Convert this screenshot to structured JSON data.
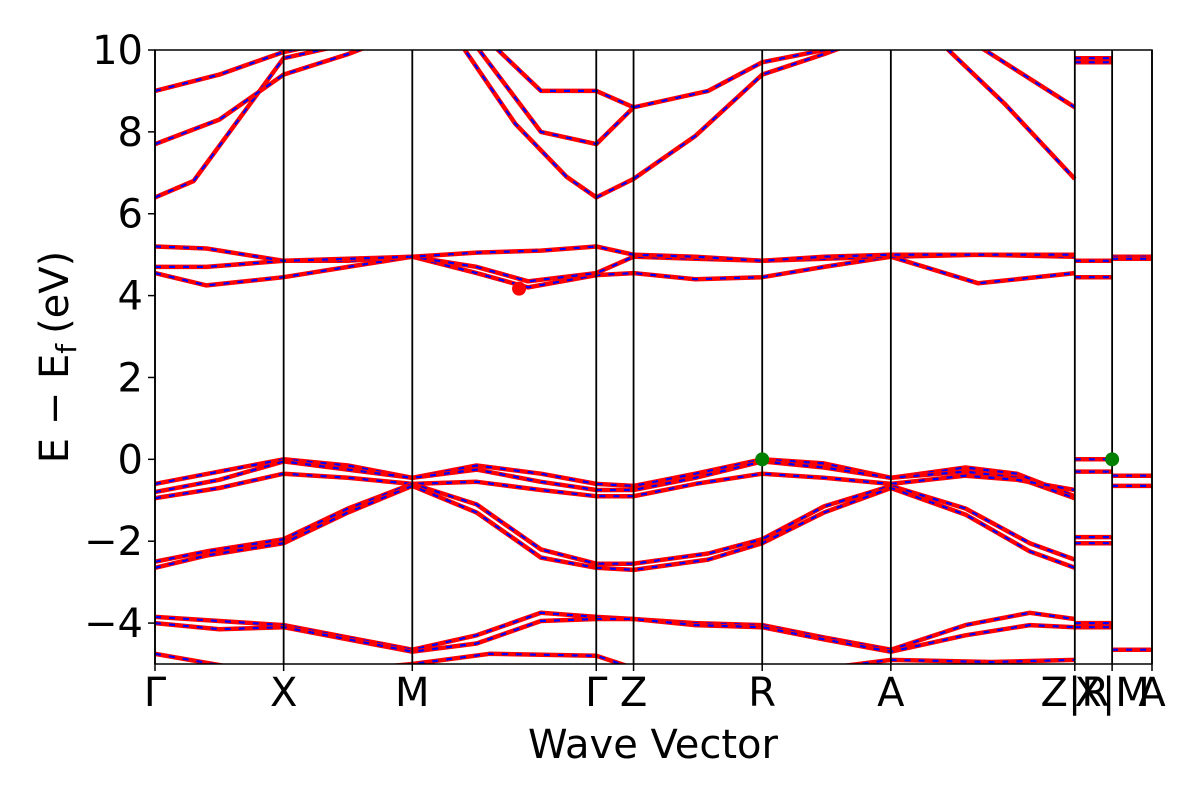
{
  "chart_data": {
    "type": "line",
    "title": "",
    "xlabel": "Wave Vector",
    "ylabel": "E  −  E",
    "ylabel_subscript": "f",
    "ylabel_unit": "(eV)",
    "ylim": [
      -5,
      10
    ],
    "yticks": [
      -4,
      -2,
      0,
      2,
      4,
      6,
      8,
      10
    ],
    "ytick_labels": [
      "−4",
      "−2",
      "0",
      "2",
      "4",
      "6",
      "8",
      "10"
    ],
    "x_range": [
      0,
      7.75
    ],
    "kpath": [
      {
        "label": "Γ",
        "x": 0.0
      },
      {
        "label": "X",
        "x": 1.0
      },
      {
        "label": "M",
        "x": 2.0
      },
      {
        "label": "Γ",
        "x": 3.43
      },
      {
        "label": "Z",
        "x": 3.72
      },
      {
        "label": "R",
        "x": 4.72
      },
      {
        "label": "A",
        "x": 5.72
      },
      {
        "label": "Z|R",
        "x": 7.15
      },
      {
        "label": "X|M",
        "x": 7.44
      },
      {
        "label": "A",
        "x": 7.75
      }
    ],
    "series_colors": {
      "spin_up": "#ff0000",
      "spin_down": "#0000ff"
    },
    "markers": [
      {
        "name": "cbm",
        "x": 2.83,
        "y": 4.17,
        "color": "#ff0000"
      },
      {
        "name": "vbm",
        "x": 4.72,
        "y": 0.0,
        "color": "#008000"
      },
      {
        "name": "vbm",
        "x": 7.44,
        "y": 0.0,
        "color": "#008000"
      }
    ],
    "bands": [
      [
        [
          0,
          -0.6
        ],
        [
          0.5,
          -0.3
        ],
        [
          1,
          0
        ],
        [
          1.5,
          -0.15
        ],
        [
          2,
          -0.45
        ],
        [
          2.5,
          -0.15
        ],
        [
          3,
          -0.35
        ],
        [
          3.43,
          -0.6
        ],
        [
          3.72,
          -0.65
        ],
        [
          4.2,
          -0.35
        ],
        [
          4.72,
          0
        ],
        [
          5.2,
          -0.1
        ],
        [
          5.72,
          -0.45
        ],
        [
          6.3,
          -0.2
        ],
        [
          6.7,
          -0.35
        ],
        [
          7.15,
          -0.9
        ]
      ],
      [
        [
          0,
          -0.8
        ],
        [
          0.5,
          -0.5
        ],
        [
          1,
          -0.05
        ],
        [
          1.5,
          -0.25
        ],
        [
          2,
          -0.45
        ],
        [
          2.5,
          -0.25
        ],
        [
          3,
          -0.55
        ],
        [
          3.43,
          -0.75
        ],
        [
          3.72,
          -0.75
        ],
        [
          4.2,
          -0.45
        ],
        [
          4.72,
          -0.05
        ],
        [
          5.2,
          -0.2
        ],
        [
          5.72,
          -0.45
        ],
        [
          6.3,
          -0.3
        ],
        [
          6.7,
          -0.45
        ],
        [
          7.15,
          -0.95
        ]
      ],
      [
        [
          0,
          -0.95
        ],
        [
          0.5,
          -0.7
        ],
        [
          1,
          -0.35
        ],
        [
          1.5,
          -0.45
        ],
        [
          2,
          -0.6
        ],
        [
          2.5,
          -0.55
        ],
        [
          3,
          -0.75
        ],
        [
          3.43,
          -0.9
        ],
        [
          3.72,
          -0.9
        ],
        [
          4.2,
          -0.6
        ],
        [
          4.72,
          -0.35
        ],
        [
          5.2,
          -0.45
        ],
        [
          5.72,
          -0.6
        ],
        [
          6.3,
          -0.4
        ],
        [
          6.7,
          -0.5
        ],
        [
          7.15,
          -0.75
        ]
      ],
      [
        [
          0,
          -2.5
        ],
        [
          0.4,
          -2.25
        ],
        [
          1,
          -1.95
        ],
        [
          1.5,
          -1.2
        ],
        [
          2,
          -0.6
        ],
        [
          2.5,
          -1.1
        ],
        [
          3,
          -2.2
        ],
        [
          3.43,
          -2.55
        ],
        [
          3.72,
          -2.55
        ],
        [
          4.3,
          -2.3
        ],
        [
          4.72,
          -1.95
        ],
        [
          5.2,
          -1.15
        ],
        [
          5.72,
          -0.65
        ],
        [
          6.3,
          -1.2
        ],
        [
          6.8,
          -2.05
        ],
        [
          7.15,
          -2.45
        ]
      ],
      [
        [
          0,
          -2.65
        ],
        [
          0.4,
          -2.35
        ],
        [
          1,
          -2.05
        ],
        [
          1.5,
          -1.3
        ],
        [
          2,
          -0.65
        ],
        [
          2.5,
          -1.3
        ],
        [
          3,
          -2.4
        ],
        [
          3.43,
          -2.65
        ],
        [
          3.72,
          -2.7
        ],
        [
          4.3,
          -2.45
        ],
        [
          4.72,
          -2.05
        ],
        [
          5.2,
          -1.3
        ],
        [
          5.72,
          -0.7
        ],
        [
          6.3,
          -1.35
        ],
        [
          6.8,
          -2.25
        ],
        [
          7.15,
          -2.65
        ]
      ],
      [
        [
          0,
          -3.85
        ],
        [
          0.5,
          -3.95
        ],
        [
          1,
          -4.05
        ],
        [
          1.5,
          -4.35
        ],
        [
          2,
          -4.65
        ],
        [
          2.5,
          -4.3
        ],
        [
          3,
          -3.75
        ],
        [
          3.43,
          -3.85
        ],
        [
          3.72,
          -3.9
        ],
        [
          4.2,
          -4.0
        ],
        [
          4.72,
          -4.05
        ],
        [
          5.2,
          -4.35
        ],
        [
          5.72,
          -4.65
        ],
        [
          6.3,
          -4.05
        ],
        [
          6.8,
          -3.75
        ],
        [
          7.15,
          -3.9
        ]
      ],
      [
        [
          0,
          -4.0
        ],
        [
          0.5,
          -4.15
        ],
        [
          1,
          -4.1
        ],
        [
          1.5,
          -4.4
        ],
        [
          2,
          -4.7
        ],
        [
          2.5,
          -4.5
        ],
        [
          3,
          -3.95
        ],
        [
          3.43,
          -3.9
        ],
        [
          3.72,
          -3.9
        ],
        [
          4.2,
          -4.05
        ],
        [
          4.72,
          -4.1
        ],
        [
          5.2,
          -4.4
        ],
        [
          5.72,
          -4.7
        ],
        [
          6.3,
          -4.3
        ],
        [
          6.8,
          -4.05
        ],
        [
          7.15,
          -4.1
        ]
      ],
      [
        [
          0,
          -4.75
        ],
        [
          1,
          -5.3
        ],
        [
          2,
          -5.0
        ],
        [
          2.6,
          -4.75
        ],
        [
          3.43,
          -4.8
        ],
        [
          3.72,
          -5.1
        ],
        [
          4.72,
          -5.3
        ],
        [
          5.72,
          -4.9
        ],
        [
          6.5,
          -4.95
        ],
        [
          7.15,
          -4.9
        ]
      ],
      [
        [
          0,
          4.55
        ],
        [
          0.4,
          4.25
        ],
        [
          1,
          4.45
        ],
        [
          1.5,
          4.7
        ],
        [
          2,
          4.95
        ],
        [
          2.5,
          4.55
        ],
        [
          2.9,
          4.2
        ],
        [
          3.43,
          4.5
        ],
        [
          3.72,
          4.55
        ],
        [
          4.2,
          4.4
        ],
        [
          4.72,
          4.45
        ],
        [
          5.2,
          4.7
        ],
        [
          5.72,
          4.95
        ],
        [
          6.4,
          4.3
        ],
        [
          7.15,
          4.55
        ]
      ],
      [
        [
          0,
          4.7
        ],
        [
          0.4,
          4.7
        ],
        [
          1,
          4.85
        ],
        [
          1.5,
          4.85
        ],
        [
          2,
          4.95
        ],
        [
          2.5,
          4.7
        ],
        [
          2.9,
          4.35
        ],
        [
          3.43,
          4.55
        ],
        [
          3.72,
          4.95
        ],
        [
          4.2,
          4.9
        ],
        [
          4.72,
          4.85
        ],
        [
          5.2,
          4.9
        ],
        [
          5.72,
          4.95
        ],
        [
          6.4,
          5.0
        ],
        [
          7.15,
          4.95
        ]
      ],
      [
        [
          0,
          5.2
        ],
        [
          0.4,
          5.15
        ],
        [
          1,
          4.85
        ],
        [
          1.5,
          4.9
        ],
        [
          2,
          4.95
        ],
        [
          2.5,
          5.05
        ],
        [
          3,
          5.1
        ],
        [
          3.43,
          5.2
        ],
        [
          3.72,
          5.0
        ],
        [
          4.2,
          4.95
        ],
        [
          4.72,
          4.85
        ],
        [
          5.2,
          4.95
        ],
        [
          5.72,
          5.0
        ],
        [
          6.4,
          5.0
        ],
        [
          7.15,
          5.0
        ]
      ],
      [
        [
          0,
          6.4
        ],
        [
          0.3,
          6.8
        ],
        [
          1,
          9.8
        ],
        [
          2,
          10.5
        ]
      ],
      [
        [
          0,
          7.7
        ],
        [
          0.5,
          8.3
        ],
        [
          1,
          9.4
        ],
        [
          1.5,
          9.9
        ],
        [
          2,
          10.5
        ]
      ],
      [
        [
          0,
          9.0
        ],
        [
          0.5,
          9.4
        ],
        [
          1,
          9.95
        ],
        [
          2,
          10.6
        ]
      ],
      [
        [
          2.3,
          10.5
        ],
        [
          2.8,
          8.2
        ],
        [
          3.2,
          6.9
        ],
        [
          3.43,
          6.4
        ],
        [
          3.72,
          6.85
        ],
        [
          4.2,
          7.9
        ],
        [
          4.72,
          9.4
        ],
        [
          5.2,
          9.9
        ],
        [
          5.72,
          10.5
        ]
      ],
      [
        [
          2.4,
          10.5
        ],
        [
          3.0,
          8.0
        ],
        [
          3.43,
          7.7
        ],
        [
          3.72,
          8.6
        ],
        [
          4.3,
          9.0
        ],
        [
          4.72,
          9.7
        ],
        [
          5.2,
          10.0
        ],
        [
          5.72,
          10.5
        ]
      ],
      [
        [
          2.5,
          10.5
        ],
        [
          3.0,
          9.0
        ],
        [
          3.43,
          9.0
        ],
        [
          3.72,
          8.6
        ]
      ],
      [
        [
          6.0,
          10.5
        ],
        [
          6.6,
          8.7
        ],
        [
          7.15,
          6.85
        ]
      ],
      [
        [
          6.2,
          10.5
        ],
        [
          6.7,
          9.5
        ],
        [
          7.15,
          8.6
        ]
      ]
    ],
    "flat_segments_RX": [
      9.8,
      9.7,
      4.85,
      4.45,
      0.0,
      -0.3,
      -1.9,
      -2.05,
      -4.0,
      -4.1
    ],
    "flat_segments_MA": [
      4.95,
      4.9,
      -0.4,
      -0.65,
      -4.65
    ]
  }
}
